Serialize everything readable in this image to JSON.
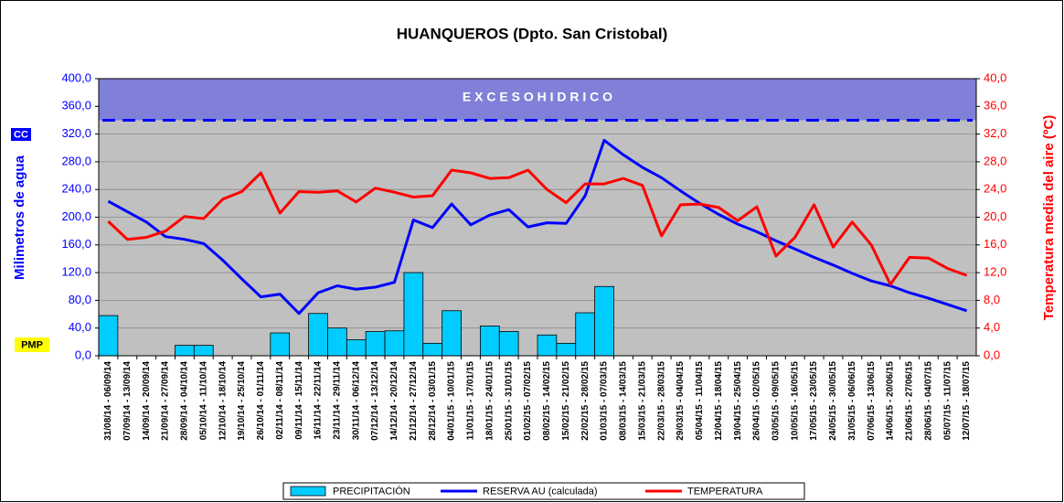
{
  "chart_data": {
    "type": "bar_line",
    "title": "HUANQUEROS (Dpto. San Cristobal)",
    "ylabel": "Milimetros de agua",
    "y2label": "Temperatura media del aire (ºC)",
    "annotations": {
      "exceso": "E X C E S O      H I D R I C O",
      "cc": "CC",
      "pmp": "PMP"
    },
    "exceso_level": 340,
    "categories": [
      "31/08/14 - 06/09/14",
      "07/09/14 - 13/09/14",
      "14/09/14 - 20/09/14",
      "21/09/14 - 27/09/14",
      "28/09/14 - 04/10/14",
      "05/10/14 - 11/10/14",
      "12/10/14 - 18/10/14",
      "19/10/14 - 25/10/14",
      "26/10/14 - 01/11/14",
      "02/11/14 - 08/11/14",
      "09/11/14 - 15/11/14",
      "16/11/14 - 22/11/14",
      "23/11/14 - 29/11/14",
      "30/11/14 - 06/12/14",
      "07/12/14 - 13/12/14",
      "14/12/14 - 20/12/14",
      "21/12/14 - 27/12/14",
      "28/12/14 - 03/01/15",
      "04/01/15 - 10/01/15",
      "11/01/15 - 17/01/15",
      "18/01/15 - 24/01/15",
      "25/01/15 - 31/01/15",
      "01/02/15 - 07/02/15",
      "08/02/15 - 14/02/15",
      "15/02/15 - 21/02/15",
      "22/02/15 - 28/02/15",
      "01/03/15 - 07/03/15",
      "08/03/15 - 14/03/15",
      "15/03/15 - 21/03/15",
      "22/03/15 - 28/03/15",
      "29/03/15 - 04/04/15",
      "05/04/15 - 11/04/15",
      "12/04/15 - 18/04/15",
      "19/04/15 - 25/04/15",
      "26/04/15 - 02/05/15",
      "03/05/15 - 09/05/15",
      "10/05/15 - 16/05/15",
      "17/05/15 - 23/05/15",
      "24/05/15 - 30/05/15",
      "31/05/15 - 06/06/15",
      "07/06/15 - 13/06/15",
      "14/06/15 - 20/06/15",
      "21/06/15 - 27/06/15",
      "28/06/15 - 04/07/15",
      "05/07/15 - 11/07/15",
      "12/07/15 - 18/07/15"
    ],
    "series": [
      {
        "name": "PRECIPITACIÓN",
        "type": "bar",
        "color": "#00ccff",
        "values": [
          58,
          0,
          0,
          0,
          15,
          15,
          0,
          0,
          0,
          33,
          0,
          61,
          40,
          23,
          35,
          36,
          120,
          18,
          65,
          0,
          43,
          35,
          0,
          30,
          18,
          62,
          100,
          0,
          0,
          0,
          0,
          0,
          0,
          0,
          0,
          0,
          0,
          0,
          0,
          0,
          0,
          0,
          0,
          0,
          0,
          0
        ]
      },
      {
        "name": "RESERVA AU (calculada)",
        "type": "line",
        "color": "#0000ff",
        "values": [
          223,
          208,
          193,
          172,
          168,
          162,
          138,
          111,
          85,
          89,
          61,
          91,
          101,
          96,
          99,
          106,
          196,
          185,
          219,
          189,
          203,
          211,
          186,
          192,
          191,
          231,
          311,
          290,
          272,
          257,
          238,
          220,
          204,
          190,
          179,
          166,
          154,
          142,
          131,
          119,
          108,
          101,
          91,
          83,
          74,
          65
        ]
      },
      {
        "name": "TEMPERATURA",
        "type": "line",
        "color": "#ff0000",
        "axis": "y2",
        "values": [
          19.4,
          16.8,
          17.1,
          18.0,
          20.1,
          19.8,
          22.6,
          23.7,
          26.4,
          20.6,
          23.7,
          23.6,
          23.8,
          22.2,
          24.2,
          23.6,
          22.9,
          23.1,
          26.8,
          26.4,
          25.6,
          25.7,
          26.8,
          24.0,
          22.1,
          24.8,
          24.8,
          25.6,
          24.6,
          17.3,
          21.8,
          21.9,
          21.4,
          19.5,
          21.5,
          14.4,
          17.1,
          21.8,
          15.7,
          19.3,
          16.0,
          10.3,
          14.2,
          14.1,
          12.6,
          11.6
        ]
      }
    ],
    "ylim": [
      0,
      400
    ],
    "yticks": [
      {
        "value": 0,
        "label": "0,0"
      },
      {
        "value": 40,
        "label": "40,0"
      },
      {
        "value": 80,
        "label": "80,0"
      },
      {
        "value": 120,
        "label": "120,0"
      },
      {
        "value": 160,
        "label": "160,0"
      },
      {
        "value": 200,
        "label": "200,0"
      },
      {
        "value": 240,
        "label": "240,0"
      },
      {
        "value": 280,
        "label": "280,0"
      },
      {
        "value": 320,
        "label": "320,0"
      },
      {
        "value": 360,
        "label": "360,0"
      },
      {
        "value": 400,
        "label": "400,0"
      }
    ],
    "y2lim": [
      0,
      40
    ],
    "y2ticks": [
      {
        "value": 0,
        "label": "0,0"
      },
      {
        "value": 4,
        "label": "4,0"
      },
      {
        "value": 8,
        "label": "8,0"
      },
      {
        "value": 12,
        "label": "12,0"
      },
      {
        "value": 16,
        "label": "16,0"
      },
      {
        "value": 20,
        "label": "20,0"
      },
      {
        "value": 24,
        "label": "24,0"
      },
      {
        "value": 28,
        "label": "28,0"
      },
      {
        "value": 32,
        "label": "32,0"
      },
      {
        "value": 36,
        "label": "36,0"
      },
      {
        "value": 40,
        "label": "40,0"
      }
    ],
    "grid": true
  }
}
